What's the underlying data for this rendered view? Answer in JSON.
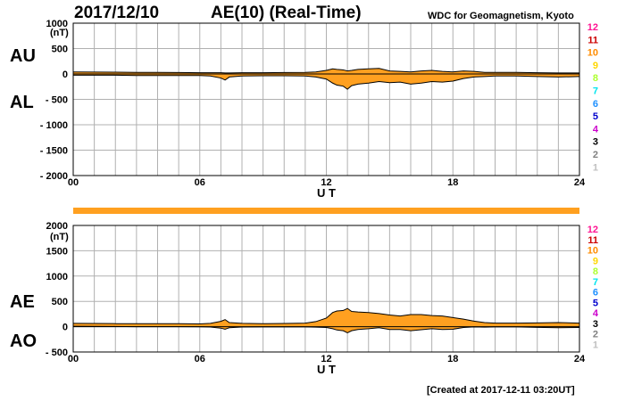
{
  "header": {
    "date": "2017/12/10",
    "title": "AE(10) (Real-Time)",
    "source": "WDC for Geomagnetism, Kyoto"
  },
  "footer": {
    "created": "[Created at 2017-12-11 03:20UT]"
  },
  "legend": {
    "items": [
      {
        "label": "12",
        "color": "#ff1493"
      },
      {
        "label": "11",
        "color": "#cc0000"
      },
      {
        "label": "10",
        "color": "#ff8c00"
      },
      {
        "label": "9",
        "color": "#ffd700"
      },
      {
        "label": "8",
        "color": "#adff2f"
      },
      {
        "label": "7",
        "color": "#00e5ee"
      },
      {
        "label": "6",
        "color": "#1e90ff"
      },
      {
        "label": "5",
        "color": "#0000cd"
      },
      {
        "label": "4",
        "color": "#cc00cc"
      },
      {
        "label": "3",
        "color": "#000000"
      },
      {
        "label": "2",
        "color": "#808080"
      },
      {
        "label": "1",
        "color": "#c0c0c0"
      }
    ]
  },
  "colors": {
    "fill": "#ffa020",
    "line": "#000000",
    "grid": "#b0b0b0"
  },
  "chart_data": [
    {
      "type": "area",
      "side_labels": [
        "AU",
        "AL"
      ],
      "unit": "(nT)",
      "xlabel": "U T",
      "xlim": [
        0,
        24
      ],
      "x_ticks": [
        "00",
        "06",
        "12",
        "18",
        "24"
      ],
      "ylim": [
        -2000,
        1000
      ],
      "y_ticks": [
        "1000",
        "500",
        "0",
        "- 500",
        "- 1000",
        "- 1500",
        "- 2000"
      ],
      "y_tick_values": [
        1000,
        500,
        0,
        -500,
        -1000,
        -1500,
        -2000
      ],
      "series": [
        {
          "x": [
            0,
            1,
            2,
            3,
            4,
            5,
            6,
            6.5,
            7,
            7.2,
            7.4,
            8,
            9,
            10,
            11,
            11.5,
            12,
            12.3,
            12.5,
            12.8,
            13,
            13.2,
            13.5,
            14,
            14.5,
            15,
            15.5,
            16,
            16.5,
            17,
            17.5,
            18,
            18.5,
            19,
            19.5,
            20,
            21,
            22,
            23,
            24
          ],
          "y": [
            40,
            38,
            35,
            30,
            30,
            28,
            25,
            25,
            25,
            20,
            20,
            25,
            25,
            28,
            30,
            40,
            70,
            100,
            90,
            80,
            60,
            70,
            90,
            100,
            110,
            60,
            50,
            40,
            60,
            70,
            50,
            40,
            60,
            50,
            30,
            30,
            30,
            25,
            20,
            20
          ]
        },
        {
          "x": [
            0,
            1,
            2,
            3,
            4,
            5,
            6,
            6.5,
            7,
            7.2,
            7.4,
            8,
            9,
            10,
            11,
            11.5,
            12,
            12.3,
            12.5,
            12.8,
            13,
            13.2,
            13.5,
            14,
            14.5,
            15,
            15.5,
            16,
            16.5,
            17,
            17.5,
            18,
            18.5,
            19,
            19.5,
            20,
            21,
            22,
            23,
            24
          ],
          "y": [
            -25,
            -25,
            -25,
            -30,
            -30,
            -30,
            -30,
            -40,
            -80,
            -120,
            -60,
            -40,
            -35,
            -35,
            -40,
            -60,
            -100,
            -180,
            -220,
            -240,
            -300,
            -230,
            -200,
            -180,
            -150,
            -170,
            -160,
            -200,
            -180,
            -150,
            -160,
            -140,
            -90,
            -60,
            -50,
            -40,
            -40,
            -50,
            -60,
            -50
          ]
        }
      ]
    },
    {
      "type": "area",
      "side_labels": [
        "AE",
        "AO"
      ],
      "unit": "(nT)",
      "xlabel": "U T",
      "xlim": [
        0,
        24
      ],
      "x_ticks": [
        "00",
        "06",
        "12",
        "18",
        "24"
      ],
      "ylim": [
        -500,
        2000
      ],
      "y_ticks": [
        "2000",
        "1500",
        "1000",
        "500",
        "0",
        "- 500"
      ],
      "y_tick_values": [
        2000,
        1500,
        1000,
        500,
        0,
        -500
      ],
      "series": [
        {
          "x": [
            0,
            1,
            2,
            3,
            4,
            5,
            6,
            6.5,
            7,
            7.2,
            7.4,
            8,
            9,
            10,
            11,
            11.5,
            12,
            12.3,
            12.5,
            12.8,
            13,
            13.2,
            13.5,
            14,
            14.5,
            15,
            15.5,
            16,
            16.5,
            17,
            17.5,
            18,
            18.5,
            19,
            19.5,
            20,
            21,
            22,
            23,
            24
          ],
          "y": [
            65,
            63,
            60,
            60,
            60,
            58,
            55,
            65,
            105,
            140,
            80,
            65,
            60,
            63,
            70,
            100,
            170,
            280,
            310,
            320,
            360,
            300,
            290,
            280,
            260,
            230,
            210,
            240,
            240,
            220,
            210,
            180,
            150,
            110,
            80,
            70,
            70,
            75,
            80,
            70
          ]
        },
        {
          "x": [
            0,
            1,
            2,
            3,
            4,
            5,
            6,
            6.5,
            7,
            7.2,
            7.4,
            8,
            9,
            10,
            11,
            11.5,
            12,
            12.3,
            12.5,
            12.8,
            13,
            13.2,
            13.5,
            14,
            14.5,
            15,
            15.5,
            16,
            16.5,
            17,
            17.5,
            18,
            18.5,
            19,
            19.5,
            20,
            21,
            22,
            23,
            24
          ],
          "y": [
            8,
            6,
            5,
            0,
            0,
            -1,
            -3,
            -8,
            -28,
            -50,
            -20,
            -8,
            -5,
            -4,
            -5,
            -10,
            -15,
            -40,
            -65,
            -80,
            -120,
            -80,
            -55,
            -40,
            -20,
            -55,
            -55,
            -80,
            -60,
            -40,
            -55,
            -50,
            -15,
            -5,
            -10,
            -5,
            -5,
            -13,
            -20,
            -15
          ]
        }
      ]
    }
  ]
}
